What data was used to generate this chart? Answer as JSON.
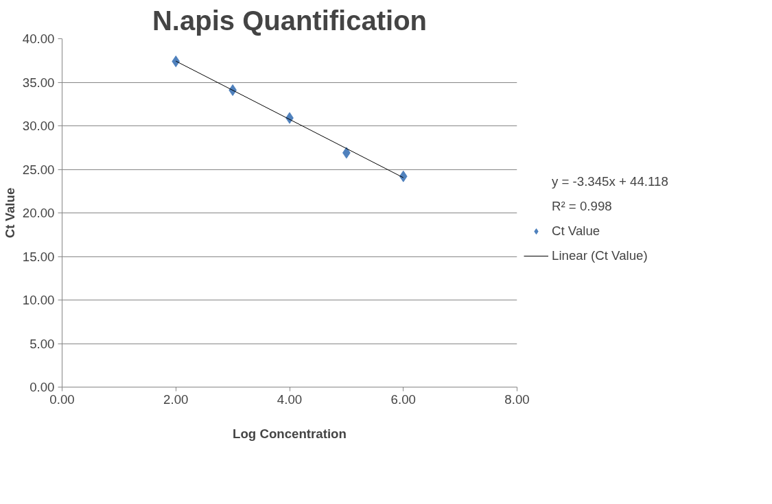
{
  "chart_data": {
    "type": "scatter",
    "title": "N.apis Quantification",
    "xlabel": "Log Concentration",
    "ylabel": "Ct Value",
    "x": [
      2,
      3,
      4,
      5,
      6
    ],
    "series": [
      {
        "name": "Ct Value",
        "color": "#4f81bd",
        "values": [
          37.4,
          34.1,
          30.9,
          26.9,
          24.2
        ],
        "marker": "diamond"
      },
      {
        "name": "Linear (Ct Value)",
        "type": "line",
        "color": "#000000",
        "x": [
          2,
          6
        ],
        "values": [
          37.43,
          24.05
        ],
        "line_style": "solid"
      }
    ],
    "annotations": [
      "y = -3.345x + 44.118",
      "R² = 0.998"
    ],
    "xlim": [
      0,
      8
    ],
    "xticks": [
      {
        "value": 0,
        "label": "0.00"
      },
      {
        "value": 2,
        "label": "2.00"
      },
      {
        "value": 4,
        "label": "4.00"
      },
      {
        "value": 6,
        "label": "6.00"
      },
      {
        "value": 8,
        "label": "8.00"
      }
    ],
    "ylim": [
      0,
      40
    ],
    "yticks": [
      {
        "value": 0,
        "label": "0.00"
      },
      {
        "value": 5,
        "label": "5.00"
      },
      {
        "value": 10,
        "label": "10.00"
      },
      {
        "value": 15,
        "label": "15.00"
      },
      {
        "value": 20,
        "label": "20.00"
      },
      {
        "value": 25,
        "label": "25.00"
      },
      {
        "value": 30,
        "label": "30.00"
      },
      {
        "value": 35,
        "label": "35.00"
      },
      {
        "value": 40,
        "label": "40.00"
      }
    ],
    "grid": "y",
    "legend": "right"
  }
}
